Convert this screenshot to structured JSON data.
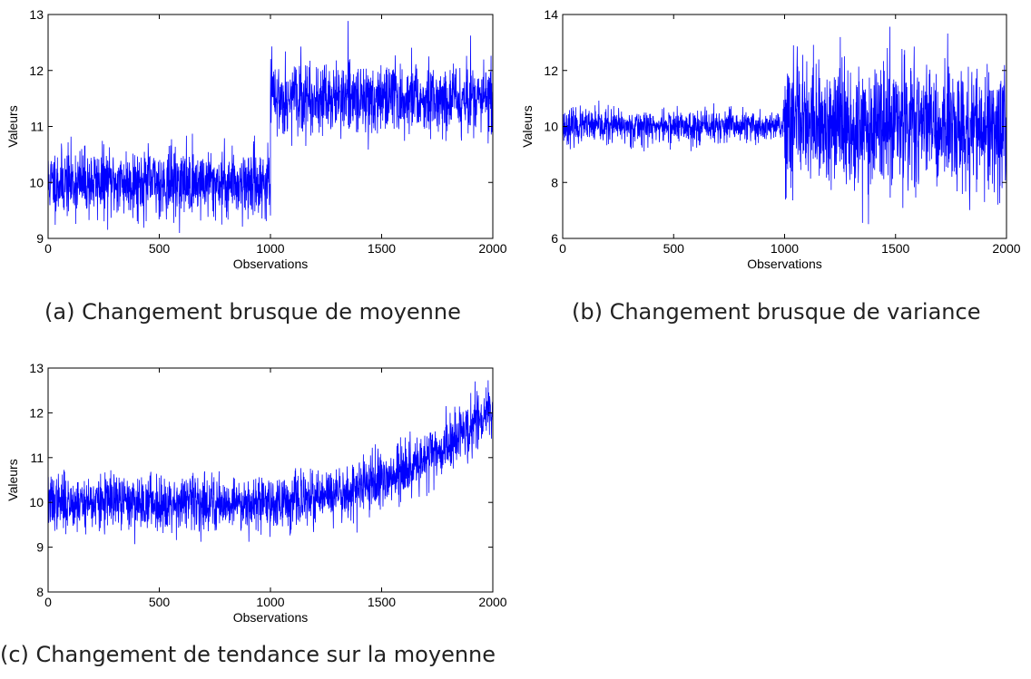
{
  "chart_data": [
    {
      "type": "line",
      "caption": "(a) Changement brusque de moyenne",
      "xlabel": "Observations",
      "ylabel": "Valeurs",
      "xlim": [
        0,
        2000
      ],
      "ylim": [
        9,
        13
      ],
      "xticks": [
        0,
        500,
        1000,
        1500,
        2000
      ],
      "yticks": [
        9,
        10,
        11,
        12,
        13
      ],
      "color": "#0000ff",
      "series": [
        {
          "x": [
            0,
            1000
          ],
          "mean": [
            10,
            10
          ],
          "noise_sd": 0.3
        },
        {
          "x": [
            1000,
            2000
          ],
          "mean": [
            11.5,
            11.5
          ],
          "noise_sd": 0.3
        }
      ]
    },
    {
      "type": "line",
      "caption": "(b) Changement brusque de variance",
      "xlabel": "Observations",
      "ylabel": "Valeurs",
      "xlim": [
        0,
        2000
      ],
      "ylim": [
        6,
        14
      ],
      "xticks": [
        0,
        500,
        1000,
        1500,
        2000
      ],
      "yticks": [
        6,
        8,
        10,
        12,
        14
      ],
      "color": "#0000ff",
      "series": [
        {
          "x": [
            0,
            1000
          ],
          "mean": [
            10,
            10
          ],
          "noise_sd": 0.3
        },
        {
          "x": [
            1000,
            2000
          ],
          "mean": [
            10,
            10
          ],
          "noise_sd": 1.1
        }
      ]
    },
    {
      "type": "line",
      "caption": "(c) Changement de tendance sur la moyenne",
      "xlabel": "Observations",
      "ylabel": "Valeurs",
      "xlim": [
        0,
        2000
      ],
      "ylim": [
        8,
        13
      ],
      "xticks": [
        0,
        500,
        1000,
        1500,
        2000
      ],
      "yticks": [
        8,
        9,
        10,
        11,
        12,
        13
      ],
      "color": "#0000ff",
      "series": [
        {
          "x": [
            0,
            1000
          ],
          "mean": [
            10,
            10
          ],
          "noise_sd": 0.3
        },
        {
          "x": [
            1000,
            2000
          ],
          "mean": [
            10,
            12
          ],
          "noise_sd": 0.3
        }
      ]
    }
  ]
}
